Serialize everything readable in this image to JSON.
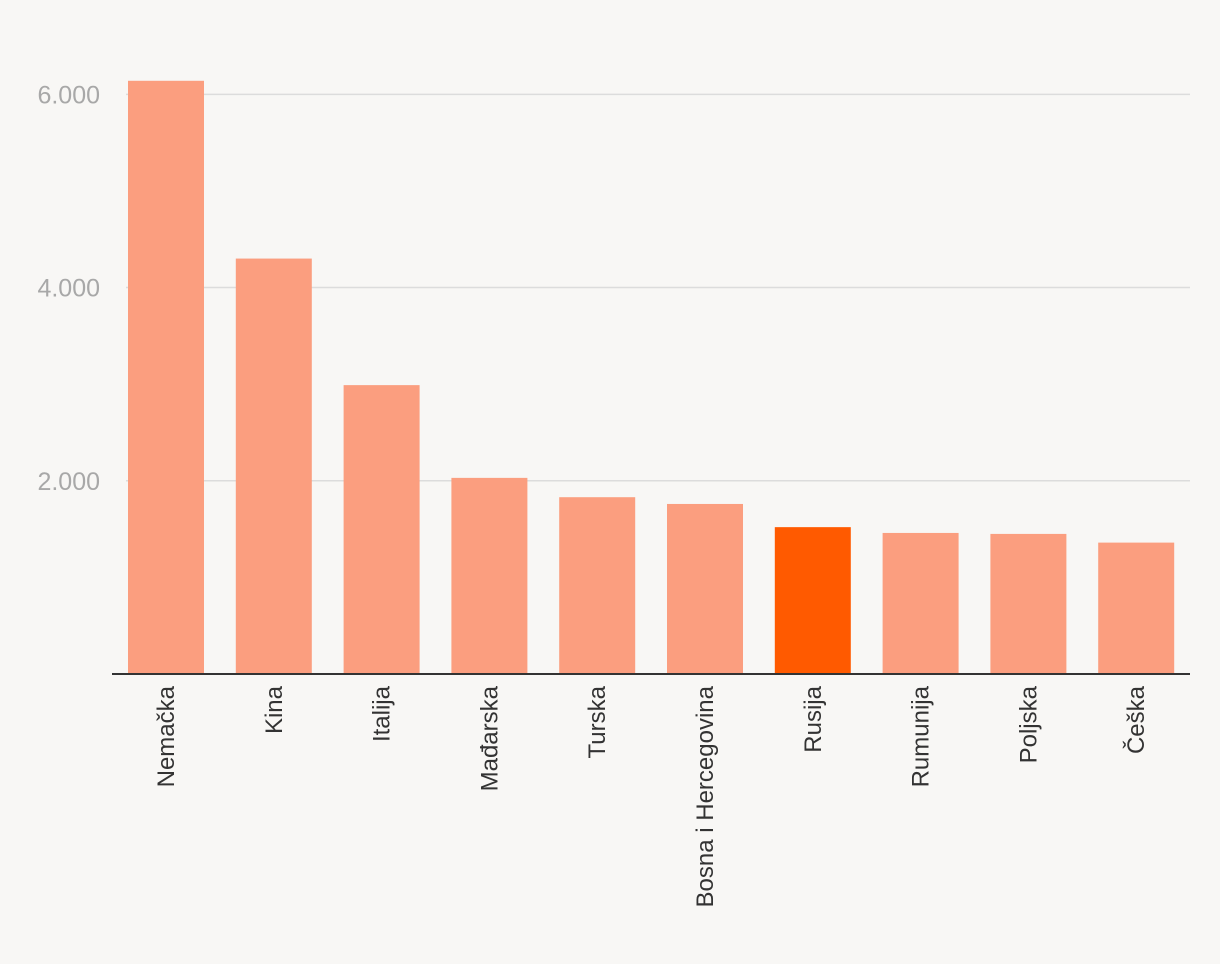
{
  "chart_data": {
    "type": "bar",
    "title": "",
    "xlabel": "",
    "ylabel": "",
    "categories": [
      "Nemačka",
      "Kina",
      "Italija",
      "Mađarska",
      "Turska",
      "Bosna i Hercegovina",
      "Rusija",
      "Rumunija",
      "Poljska",
      "Češka"
    ],
    "values": [
      6140,
      4300,
      2990,
      2030,
      1830,
      1760,
      1520,
      1460,
      1450,
      1360
    ],
    "ylim": [
      0,
      6200
    ],
    "yticks": [
      2000,
      4000,
      6000
    ],
    "ytick_labels": [
      "2.000",
      "4.000",
      "6.000"
    ],
    "grid": true,
    "legend": "none",
    "colors": {
      "bar": "#fb9e7f",
      "highlight": "#ff5a00",
      "background": "#f8f7f5",
      "grid": "#dcdcdc",
      "axis": "#333333"
    },
    "highlight_category": "Rusija"
  }
}
